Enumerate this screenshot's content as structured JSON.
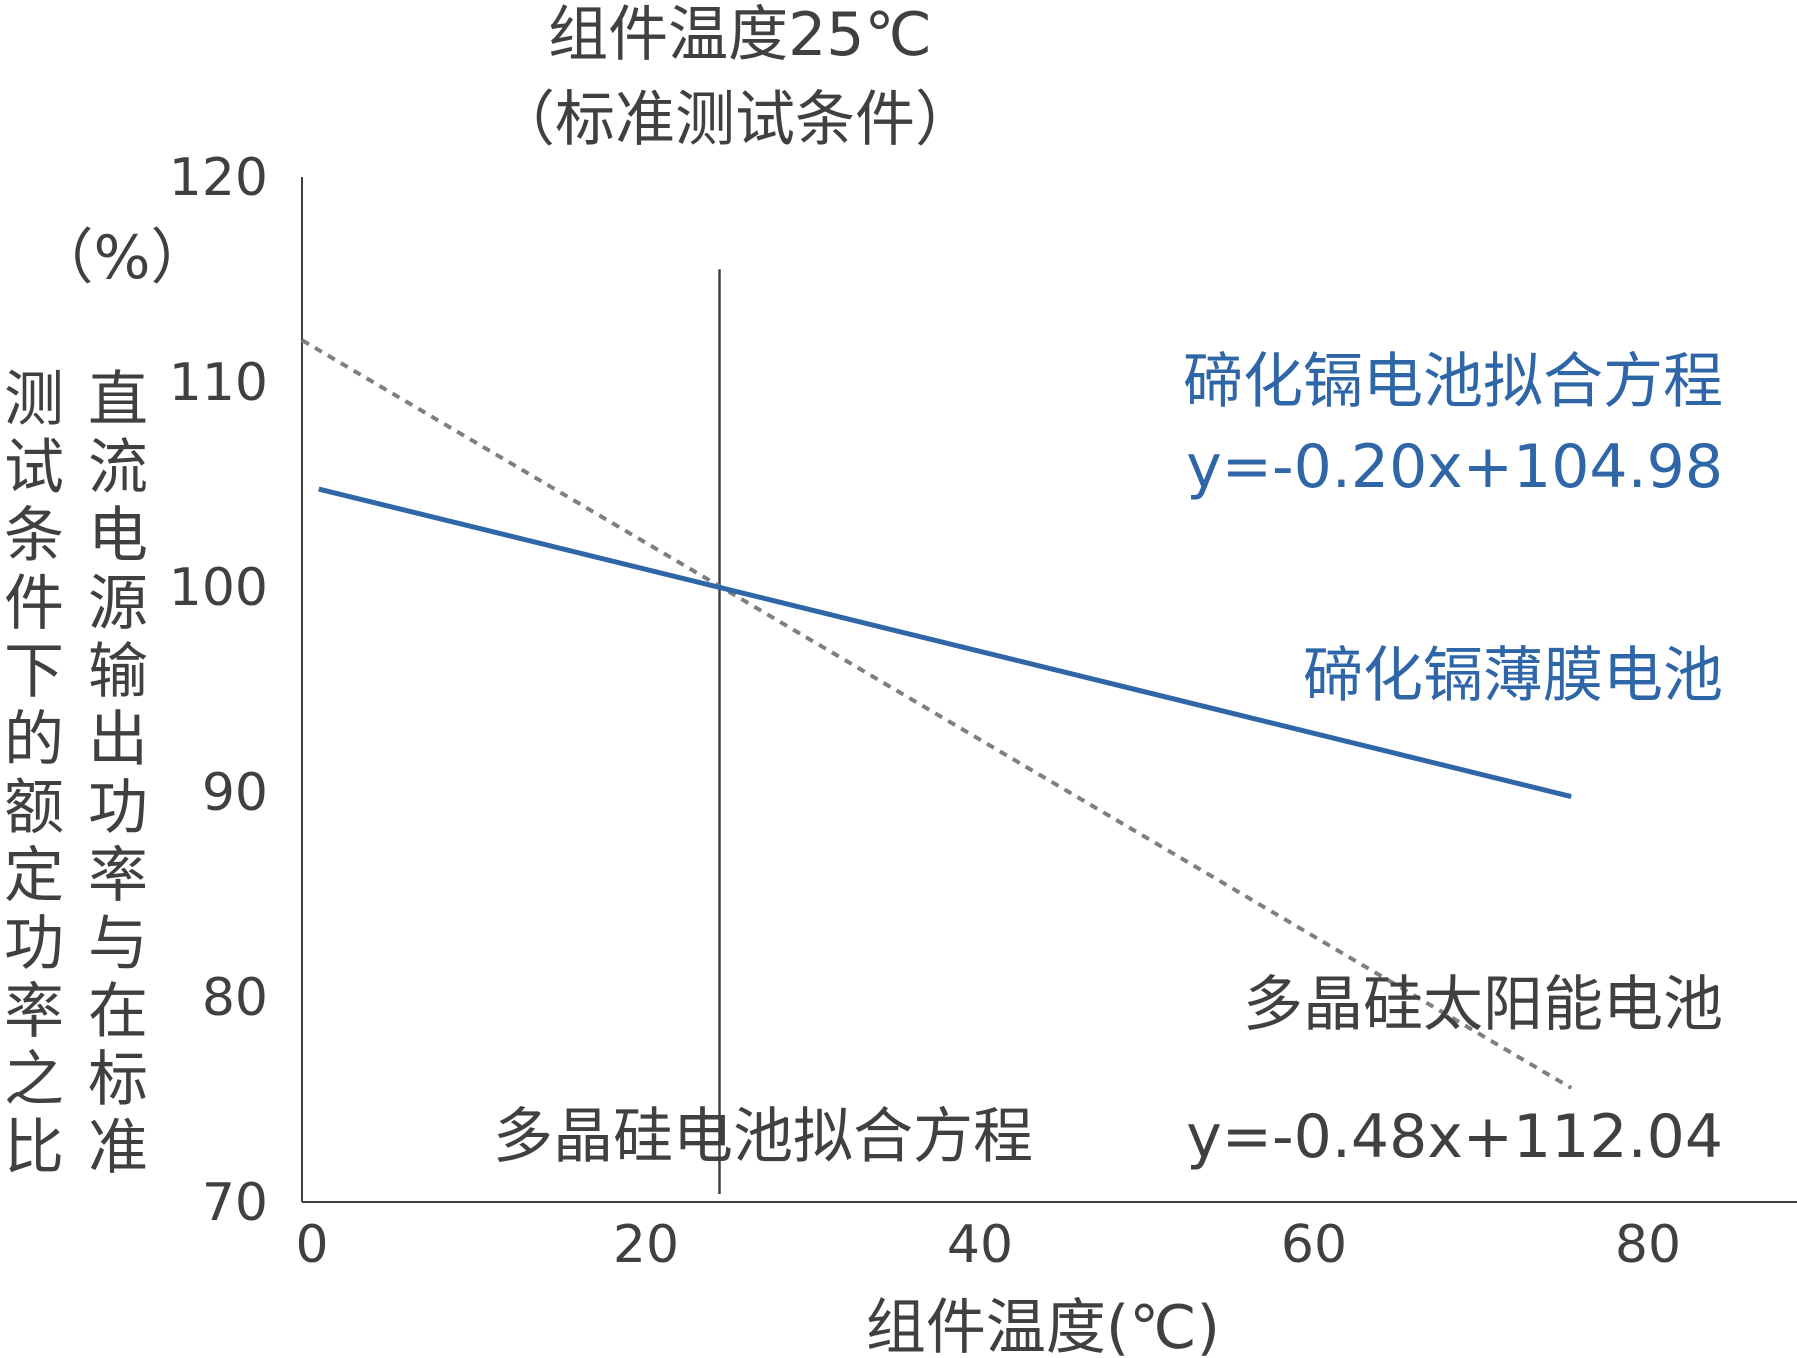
{
  "chart_data": {
    "type": "line",
    "title": "组件温度25℃",
    "subtitle": "（标准测试条件）",
    "xlabel": "组件温度(℃)",
    "ylabel_unit": "（%）",
    "ylabel_col1": "直流电源输出功率与在标准",
    "ylabel_col2": "测试条件下的额定功率之比",
    "xlim": [
      0,
      90
    ],
    "ylim": [
      70,
      120
    ],
    "x_ticks": [
      0,
      20,
      40,
      60,
      80
    ],
    "y_ticks": [
      70,
      80,
      90,
      100,
      110,
      120
    ],
    "reference_line_x": 25,
    "series": [
      {
        "name": "碲化镉薄膜电池",
        "style": "solid",
        "color": "#2f66a8",
        "x": [
          1,
          76
        ],
        "y": [
          104.78,
          89.78
        ],
        "equation_label": "碲化镉电池拟合方程",
        "equation": "y=-0.20x+104.98"
      },
      {
        "name": "多晶硅太阳能电池",
        "style": "dashed",
        "color": "#808080",
        "x": [
          0,
          76
        ],
        "y": [
          112.04,
          75.56
        ],
        "equation_label": "多晶硅电池拟合方程",
        "equation": "y=-0.48x+112.04"
      }
    ]
  }
}
